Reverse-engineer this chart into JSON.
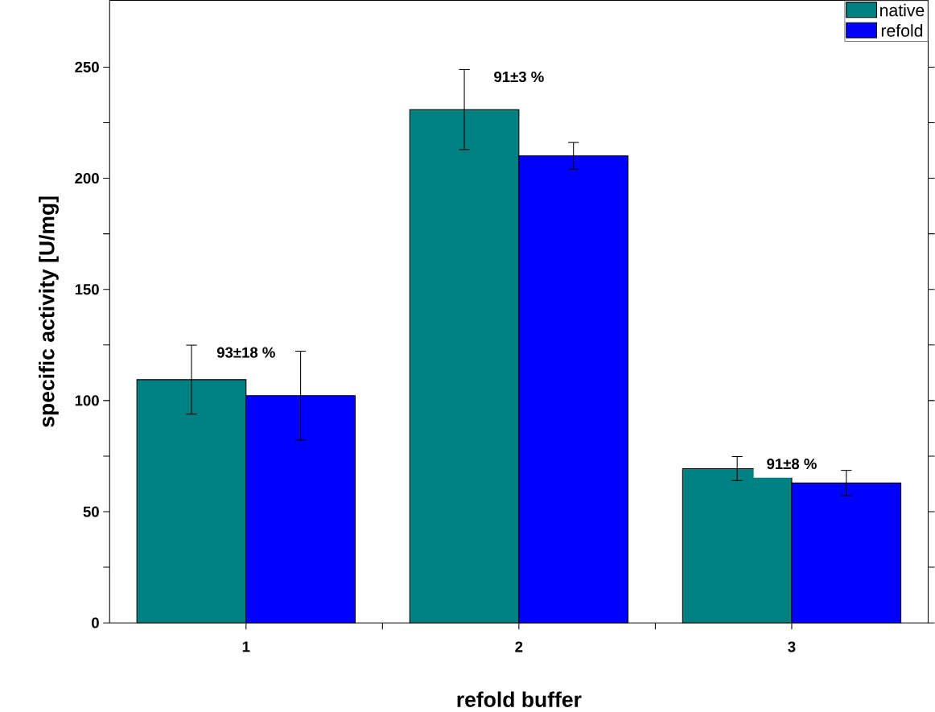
{
  "chart_data": {
    "type": "bar",
    "xlabel": "refold buffer",
    "ylabel": "specific activity [U/mg]",
    "categories": [
      "1",
      "2",
      "3"
    ],
    "series": [
      {
        "name": "native",
        "color": "#008080",
        "values": [
          109.4,
          230.9,
          69.4
        ],
        "errors": [
          15.5,
          18,
          5.4
        ]
      },
      {
        "name": "refold",
        "color": "#0000ff",
        "values": [
          102.2,
          210.1,
          62.9
        ],
        "errors": [
          20,
          6,
          5.7
        ]
      }
    ],
    "ylim": [
      0,
      280
    ],
    "yticks": [
      0,
      {
        "value": 25,
        "label": null
      },
      50,
      {
        "value": 75,
        "label": null
      },
      100,
      {
        "value": 125,
        "label": null
      },
      150,
      {
        "value": 175,
        "label": null
      },
      200,
      {
        "value": 225,
        "label": null
      },
      250
    ],
    "annotations": [
      "93±18 %",
      "91±3 %",
      "91±8 %"
    ],
    "legend": "top right",
    "grid": false
  }
}
